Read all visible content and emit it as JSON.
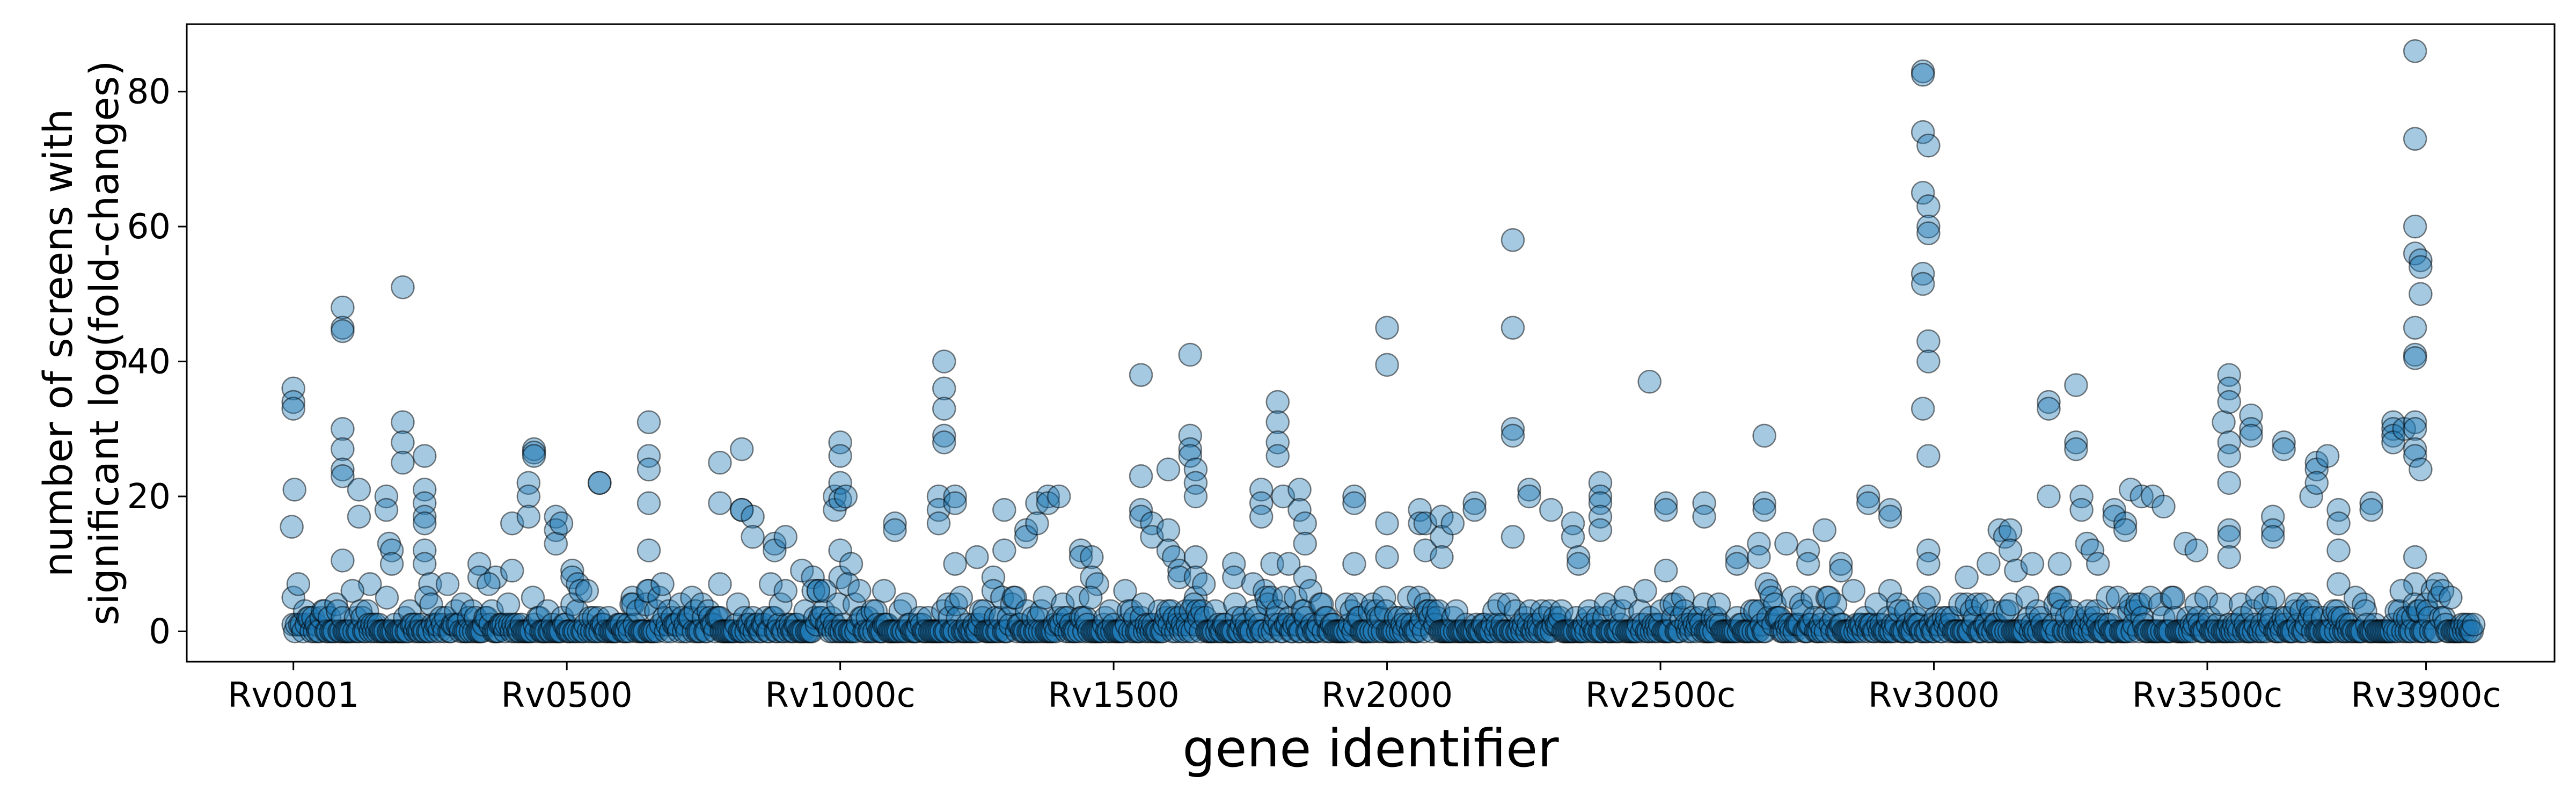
{
  "chart_data": {
    "type": "scatter",
    "title": "",
    "xlabel": "gene identifier",
    "ylabel_lines": [
      "number of screens with",
      "significant log(fold-changes)"
    ],
    "x_tick_labels": [
      "Rv0001",
      "Rv0500",
      "Rv1000c",
      "Rv1500",
      "Rv2000",
      "Rv2500c",
      "Rv3000",
      "Rv3500c",
      "Rv3900c"
    ],
    "x_tick_positions": [
      0,
      500,
      1000,
      1500,
      2000,
      2500,
      3000,
      3500,
      3900
    ],
    "xlim": [
      -195,
      4135
    ],
    "y_ticks": [
      0,
      20,
      40,
      60,
      80
    ],
    "ylim": [
      -4.5,
      90
    ],
    "grid": false,
    "marker_color": "#1f77b4",
    "marker_edge_color": "#000000",
    "marker_alpha": 0.4,
    "n_genes": 3990,
    "series": [
      {
        "points": [
          [
            0,
            36
          ],
          [
            0,
            34
          ],
          [
            0,
            33
          ],
          [
            2,
            21
          ],
          [
            -3,
            15.5
          ],
          [
            0,
            5
          ],
          [
            90,
            48
          ],
          [
            90,
            45
          ],
          [
            90,
            44.5
          ],
          [
            90,
            30
          ],
          [
            90,
            27
          ],
          [
            90,
            24
          ],
          [
            90,
            23
          ],
          [
            90,
            10.5
          ],
          [
            120,
            21
          ],
          [
            120,
            17
          ],
          [
            140,
            7
          ],
          [
            170,
            20
          ],
          [
            170,
            18
          ],
          [
            175,
            13
          ],
          [
            180,
            12
          ],
          [
            180,
            10
          ],
          [
            200,
            51
          ],
          [
            200,
            31
          ],
          [
            200,
            28
          ],
          [
            200,
            25
          ],
          [
            240,
            26
          ],
          [
            240,
            21
          ],
          [
            240,
            19
          ],
          [
            240,
            17
          ],
          [
            240,
            16
          ],
          [
            240,
            12
          ],
          [
            240,
            10
          ],
          [
            250,
            7
          ],
          [
            340,
            10
          ],
          [
            340,
            8
          ],
          [
            370,
            8
          ],
          [
            400,
            16
          ],
          [
            400,
            9
          ],
          [
            430,
            22
          ],
          [
            430,
            20
          ],
          [
            430,
            17
          ],
          [
            440,
            27
          ],
          [
            440,
            26.5
          ],
          [
            440,
            26
          ],
          [
            480,
            17
          ],
          [
            480,
            15
          ],
          [
            480,
            13
          ],
          [
            490,
            16
          ],
          [
            510,
            9
          ],
          [
            510,
            8
          ],
          [
            520,
            7
          ],
          [
            560,
            22
          ],
          [
            560,
            22
          ],
          [
            620,
            5
          ],
          [
            650,
            31
          ],
          [
            650,
            26
          ],
          [
            650,
            24
          ],
          [
            650,
            19
          ],
          [
            650,
            12
          ],
          [
            650,
            6
          ],
          [
            780,
            25
          ],
          [
            780,
            19
          ],
          [
            780,
            7
          ],
          [
            820,
            27
          ],
          [
            820,
            18
          ],
          [
            820,
            18
          ],
          [
            840,
            17
          ],
          [
            840,
            14
          ],
          [
            880,
            13
          ],
          [
            880,
            12
          ],
          [
            900,
            14
          ],
          [
            930,
            9
          ],
          [
            950,
            8
          ],
          [
            960,
            6
          ],
          [
            990,
            20
          ],
          [
            990,
            18
          ],
          [
            1000,
            28
          ],
          [
            1000,
            26
          ],
          [
            1000,
            22
          ],
          [
            1000,
            19.5
          ],
          [
            1000,
            12
          ],
          [
            1000,
            8
          ],
          [
            1010,
            20
          ],
          [
            1020,
            10
          ],
          [
            1080,
            6
          ],
          [
            1100,
            16
          ],
          [
            1100,
            15
          ],
          [
            1180,
            20
          ],
          [
            1180,
            18
          ],
          [
            1180,
            16
          ],
          [
            1190,
            40
          ],
          [
            1190,
            36
          ],
          [
            1190,
            33
          ],
          [
            1190,
            29
          ],
          [
            1190,
            28
          ],
          [
            1210,
            20
          ],
          [
            1210,
            19
          ],
          [
            1210,
            10
          ],
          [
            1250,
            11
          ],
          [
            1280,
            8
          ],
          [
            1280,
            6
          ],
          [
            1300,
            18
          ],
          [
            1300,
            12
          ],
          [
            1340,
            15
          ],
          [
            1340,
            14
          ],
          [
            1360,
            19
          ],
          [
            1360,
            16
          ],
          [
            1380,
            20
          ],
          [
            1380,
            19
          ],
          [
            1400,
            20
          ],
          [
            1440,
            12
          ],
          [
            1440,
            11
          ],
          [
            1460,
            11
          ],
          [
            1460,
            8
          ],
          [
            1470,
            7
          ],
          [
            1550,
            38
          ],
          [
            1550,
            23
          ],
          [
            1550,
            18
          ],
          [
            1550,
            17
          ],
          [
            1570,
            16
          ],
          [
            1570,
            14
          ],
          [
            1600,
            24
          ],
          [
            1600,
            15
          ],
          [
            1600,
            12
          ],
          [
            1610,
            11
          ],
          [
            1620,
            9
          ],
          [
            1620,
            8
          ],
          [
            1640,
            41
          ],
          [
            1640,
            29
          ],
          [
            1640,
            27
          ],
          [
            1640,
            26
          ],
          [
            1650,
            24
          ],
          [
            1650,
            22
          ],
          [
            1650,
            20
          ],
          [
            1650,
            11
          ],
          [
            1650,
            8
          ],
          [
            1650,
            5
          ],
          [
            1720,
            10
          ],
          [
            1720,
            8
          ],
          [
            1770,
            21
          ],
          [
            1770,
            19
          ],
          [
            1770,
            17
          ],
          [
            1790,
            10
          ],
          [
            1800,
            34
          ],
          [
            1800,
            31
          ],
          [
            1800,
            28
          ],
          [
            1800,
            26
          ],
          [
            1810,
            20
          ],
          [
            1820,
            10
          ],
          [
            1840,
            21
          ],
          [
            1840,
            18
          ],
          [
            1850,
            16
          ],
          [
            1850,
            13
          ],
          [
            1850,
            8
          ],
          [
            1940,
            20
          ],
          [
            1940,
            19
          ],
          [
            1940,
            10
          ],
          [
            2000,
            16
          ],
          [
            2000,
            45
          ],
          [
            2000,
            39.5
          ],
          [
            2000,
            11
          ],
          [
            2060,
            18
          ],
          [
            2060,
            16
          ],
          [
            2070,
            16
          ],
          [
            2070,
            12
          ],
          [
            2100,
            17
          ],
          [
            2100,
            14
          ],
          [
            2100,
            11
          ],
          [
            2120,
            16
          ],
          [
            2160,
            19
          ],
          [
            2160,
            18
          ],
          [
            2230,
            58
          ],
          [
            2230,
            45
          ],
          [
            2230,
            30
          ],
          [
            2230,
            29
          ],
          [
            2230,
            14
          ],
          [
            2260,
            21
          ],
          [
            2260,
            20
          ],
          [
            2300,
            18
          ],
          [
            2340,
            16
          ],
          [
            2340,
            14
          ],
          [
            2350,
            11
          ],
          [
            2350,
            10
          ],
          [
            2390,
            22
          ],
          [
            2390,
            20
          ],
          [
            2390,
            19
          ],
          [
            2390,
            17
          ],
          [
            2390,
            15
          ],
          [
            2480,
            37
          ],
          [
            2510,
            19
          ],
          [
            2510,
            18
          ],
          [
            2510,
            9
          ],
          [
            2580,
            19
          ],
          [
            2580,
            17
          ],
          [
            2640,
            11
          ],
          [
            2640,
            10
          ],
          [
            2680,
            13
          ],
          [
            2680,
            11
          ],
          [
            2690,
            19
          ],
          [
            2690,
            18
          ],
          [
            2690,
            29
          ],
          [
            2730,
            13
          ],
          [
            2770,
            12
          ],
          [
            2770,
            10
          ],
          [
            2800,
            15
          ],
          [
            2830,
            10
          ],
          [
            2830,
            9
          ],
          [
            2880,
            20
          ],
          [
            2880,
            19
          ],
          [
            2920,
            18
          ],
          [
            2920,
            17
          ],
          [
            2920,
            6
          ],
          [
            2980,
            83
          ],
          [
            2980,
            82.5
          ],
          [
            2980,
            74
          ],
          [
            2990,
            72
          ],
          [
            2980,
            65
          ],
          [
            2990,
            63
          ],
          [
            2990,
            60
          ],
          [
            2990,
            59
          ],
          [
            2980,
            53
          ],
          [
            2980,
            51.5
          ],
          [
            2990,
            43
          ],
          [
            2990,
            40
          ],
          [
            2980,
            33
          ],
          [
            2990,
            26
          ],
          [
            2990,
            12
          ],
          [
            2990,
            10
          ],
          [
            3060,
            8
          ],
          [
            3100,
            10
          ],
          [
            3120,
            15
          ],
          [
            3130,
            14
          ],
          [
            3140,
            15
          ],
          [
            3140,
            12
          ],
          [
            3150,
            9
          ],
          [
            3180,
            10
          ],
          [
            3210,
            34
          ],
          [
            3210,
            33
          ],
          [
            3210,
            20
          ],
          [
            3230,
            10
          ],
          [
            3260,
            36.5
          ],
          [
            3260,
            28
          ],
          [
            3260,
            27
          ],
          [
            3270,
            20
          ],
          [
            3270,
            18
          ],
          [
            3280,
            13
          ],
          [
            3290,
            12
          ],
          [
            3300,
            10
          ],
          [
            3330,
            18
          ],
          [
            3330,
            17
          ],
          [
            3350,
            16
          ],
          [
            3350,
            15
          ],
          [
            3360,
            21
          ],
          [
            3380,
            20
          ],
          [
            3400,
            20
          ],
          [
            3420,
            18.5
          ],
          [
            3460,
            13
          ],
          [
            3480,
            12
          ],
          [
            3530,
            31
          ],
          [
            3540,
            38
          ],
          [
            3540,
            36
          ],
          [
            3540,
            34
          ],
          [
            3540,
            28
          ],
          [
            3540,
            26
          ],
          [
            3540,
            22
          ],
          [
            3540,
            15
          ],
          [
            3540,
            14
          ],
          [
            3540,
            11
          ],
          [
            3580,
            32
          ],
          [
            3580,
            30
          ],
          [
            3580,
            29
          ],
          [
            3620,
            17
          ],
          [
            3620,
            15
          ],
          [
            3620,
            14
          ],
          [
            3640,
            28
          ],
          [
            3640,
            27
          ],
          [
            3690,
            20
          ],
          [
            3700,
            25
          ],
          [
            3700,
            24
          ],
          [
            3700,
            22
          ],
          [
            3720,
            26
          ],
          [
            3740,
            18
          ],
          [
            3740,
            16
          ],
          [
            3740,
            12
          ],
          [
            3740,
            7
          ],
          [
            3800,
            19
          ],
          [
            3800,
            18
          ],
          [
            3840,
            31
          ],
          [
            3840,
            30
          ],
          [
            3840,
            29
          ],
          [
            3840,
            28
          ],
          [
            3860,
            30
          ],
          [
            3880,
            86
          ],
          [
            3880,
            73
          ],
          [
            3880,
            60
          ],
          [
            3880,
            56
          ],
          [
            3890,
            55
          ],
          [
            3890,
            54
          ],
          [
            3880,
            45
          ],
          [
            3880,
            41
          ],
          [
            3880,
            40.5
          ],
          [
            3890,
            50
          ],
          [
            3880,
            31
          ],
          [
            3880,
            30
          ],
          [
            3880,
            27
          ],
          [
            3880,
            26
          ],
          [
            3890,
            24
          ],
          [
            3880,
            11
          ],
          [
            3880,
            7
          ]
        ]
      }
    ]
  }
}
